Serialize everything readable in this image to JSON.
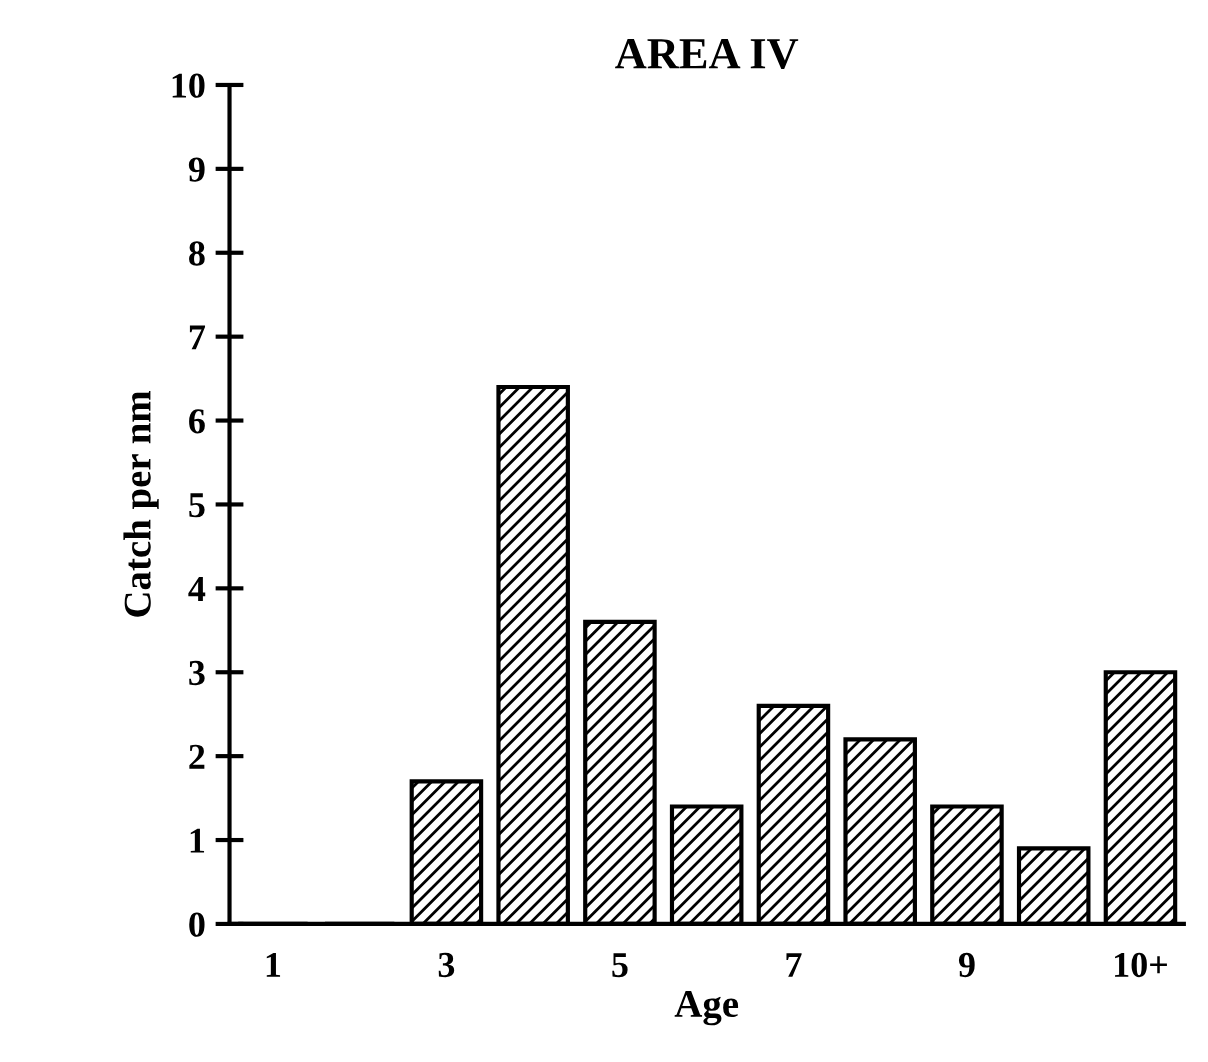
{
  "chart_data": {
    "type": "bar",
    "title": "AREA IV",
    "xlabel": "Age",
    "ylabel": "Catch per nm",
    "categories": [
      "1",
      null,
      "3",
      null,
      "5",
      null,
      "7",
      null,
      "9",
      null,
      "10+"
    ],
    "values": [
      0,
      0,
      1.7,
      6.4,
      3.6,
      1.4,
      2.6,
      2.2,
      1.4,
      0.9,
      3.0
    ],
    "color": "#000000",
    "ylim": [
      0,
      10
    ],
    "yticks": [
      0,
      1,
      2,
      3,
      4,
      5,
      6,
      7,
      8,
      9,
      10
    ],
    "grid": false
  }
}
